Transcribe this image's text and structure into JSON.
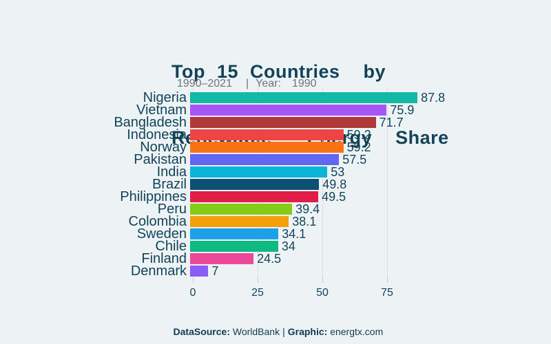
{
  "header": {
    "title_line1": "Top 15 Countries  by",
    "title_line2": "Renewable   Energy  Share",
    "subtitle_range": "1990–2021",
    "subtitle_sep": "|",
    "subtitle_year_label": "Year:",
    "subtitle_year_value": "1990"
  },
  "chart_data": {
    "type": "bar",
    "orientation": "horizontal",
    "title": "Top 15 Countries by Renewable Energy Share",
    "subtitle": "1990–2021 | Year: 1990",
    "categories": [
      "Nigeria",
      "Vietnam",
      "Bangladesh",
      "Indonesia",
      "Norway",
      "Pakistan",
      "India",
      "Brazil",
      "Philippines",
      "Peru",
      "Colombia",
      "Sweden",
      "Chile",
      "Finland",
      "Denmark"
    ],
    "values": [
      87.8,
      75.9,
      71.7,
      59.2,
      59.2,
      57.5,
      53,
      49.8,
      49.5,
      39.4,
      38.1,
      34.1,
      34,
      24.5,
      7
    ],
    "value_labels": [
      "87.8",
      "75.9",
      "71.7",
      "59.2",
      "59.2",
      "57.5",
      "53",
      "49.8",
      "49.5",
      "39.4",
      "38.1",
      "34.1",
      "34",
      "24.5",
      "7"
    ],
    "bar_colors": [
      "#14b8a6",
      "#a855f7",
      "#b23939",
      "#ef4444",
      "#f97316",
      "#6366f1",
      "#0cb4d8",
      "#0a5173",
      "#e11d48",
      "#84cc16",
      "#f5a00b",
      "#1da0e8",
      "#10b981",
      "#ec4899",
      "#8b5cf6"
    ],
    "xticks": [
      0,
      25,
      50,
      75
    ],
    "xlim": [
      0,
      100
    ],
    "xlabel": "",
    "ylabel": "",
    "grid": true,
    "legend": false
  },
  "footer": {
    "source_label": "DataSource:",
    "source_value": "WorldBank",
    "sep": "|",
    "graphic_label": "Graphic:",
    "graphic_value": "energtx.com"
  },
  "colors": {
    "background": "#edf3f4",
    "text_dark": "#134359",
    "subtitle_gray": "#6d7378",
    "gridline": "#d7dfe1"
  }
}
